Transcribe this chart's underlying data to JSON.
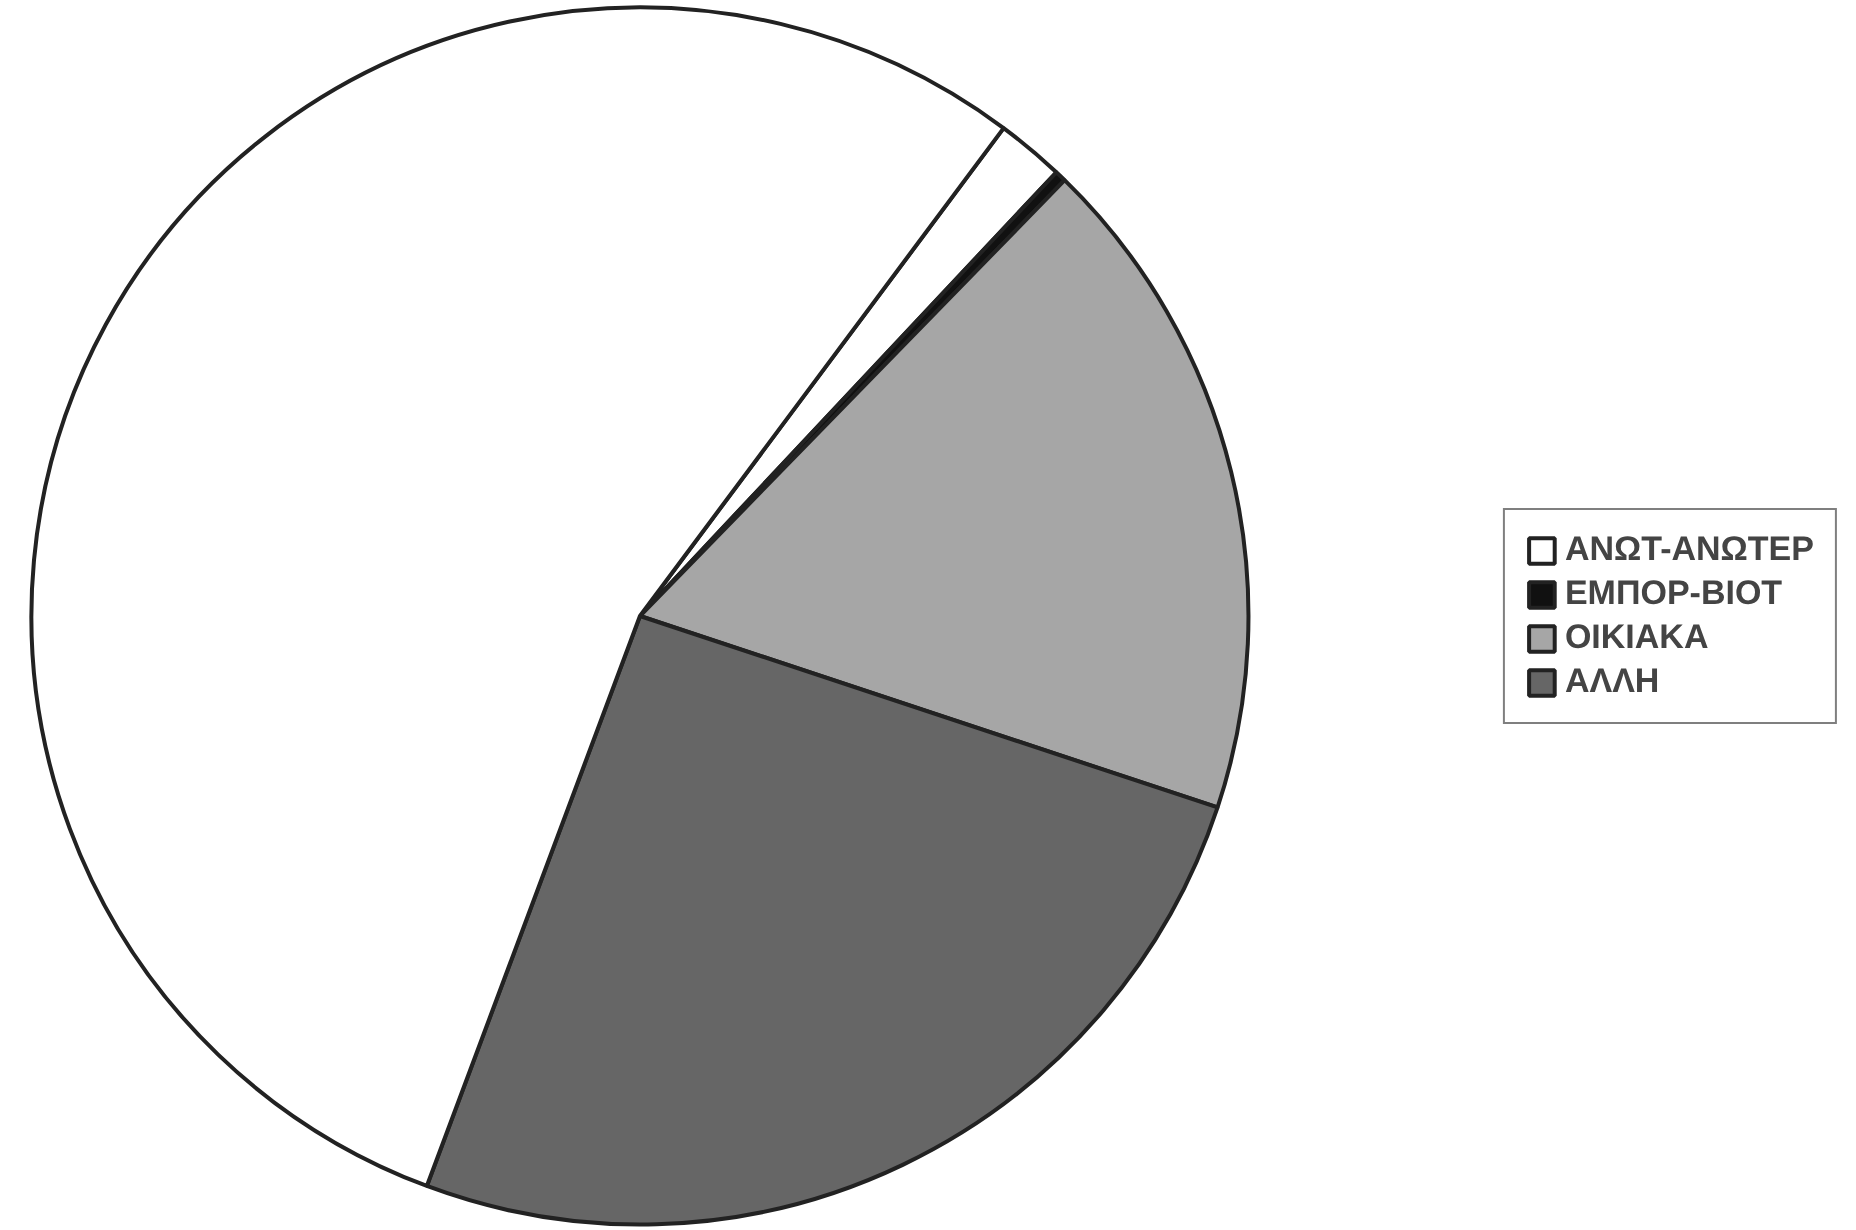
{
  "chart_data": {
    "type": "pie",
    "categories": [
      "ΑΝΩΤ-ΑΝΩΤΕΡ",
      "ΕΜΠΟΡ-ΒΙΟΤ",
      "ΟΙΚΙΑΚΑ",
      "ΑΛΛΗ",
      null
    ],
    "values": [
      1.8,
      0.3,
      17.8,
      25.6,
      54.5
    ],
    "colors": [
      "#ffffff",
      "#111111",
      "#a6a6a6",
      "#666666",
      "#ffffff"
    ],
    "legend": "right"
  }
}
